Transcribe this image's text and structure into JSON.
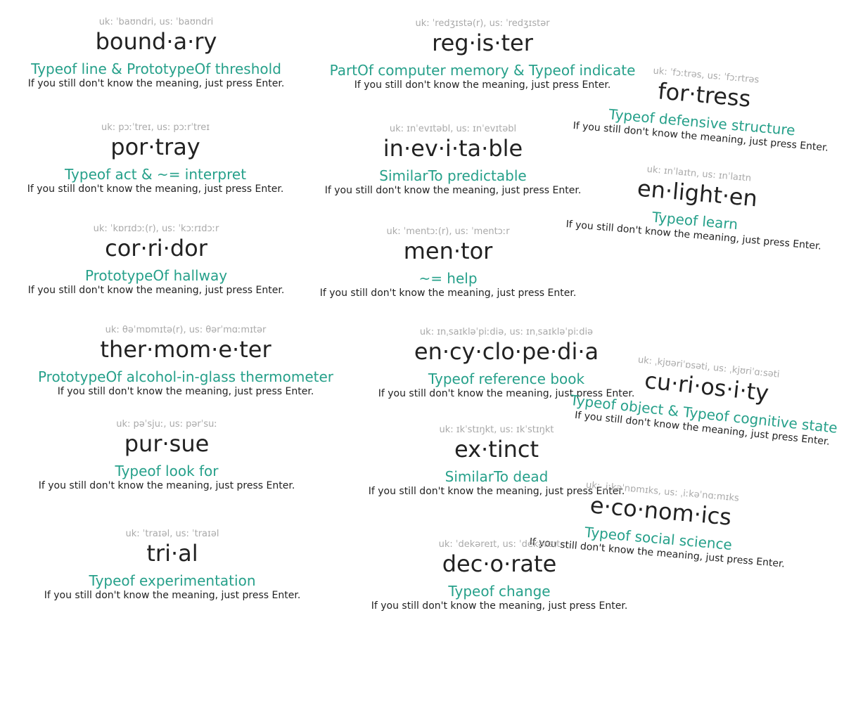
{
  "accent_color": "#26a08a",
  "cards": [
    {
      "pron": "uk: ˈbaʊndri, us: ˈbaʊndri",
      "word": "bound·a·ry",
      "relation": "Typeof line & PrototypeOf threshold",
      "hint": "If you still don't know the meaning, just press Enter."
    },
    {
      "pron": "uk: ˈredʒɪstə(r), us: ˈredʒɪstər",
      "word": "reg·is·ter",
      "relation": "PartOf computer memory & Typeof indicate",
      "hint": "If you still don't know the meaning, just press Enter."
    },
    {
      "pron": "uk: ˈfɔːtrəs, us: ˈfɔːrtrəs",
      "word": "for·tress",
      "relation": "Typeof defensive structure",
      "hint": "If you still don't know the meaning, just press Enter."
    },
    {
      "pron": "uk: pɔːˈtreɪ, us: pɔːrˈtreɪ",
      "word": "por·tray",
      "relation": "Typeof act & ~= interpret",
      "hint": "If you still don't know the meaning, just press Enter."
    },
    {
      "pron": "uk: ɪnˈevɪtəbl, us: ɪnˈevɪtəbl",
      "word": "in·ev·i·ta·ble",
      "relation": "SimilarTo predictable",
      "hint": "If you still don't know the meaning, just press Enter."
    },
    {
      "pron": "uk: ɪnˈlaɪtn, us: ɪnˈlaɪtn",
      "word": "en·light·en",
      "relation": "Typeof learn",
      "hint": "If you still don't know the meaning, just press Enter."
    },
    {
      "pron": "uk: ˈkɒrɪdɔː(r), us: ˈkɔːrɪdɔːr",
      "word": "cor·ri·dor",
      "relation": "PrototypeOf hallway",
      "hint": "If you still don't know the meaning, just press Enter."
    },
    {
      "pron": "uk: ˈmentɔː(r), us: ˈmentɔːr",
      "word": "men·tor",
      "relation": "~= help",
      "hint": "If you still don't know the meaning, just press Enter."
    },
    {
      "pron": "uk: θəˈmɒmɪtə(r), us: θərˈmɑːmɪtər",
      "word": "ther·mom·e·ter",
      "relation": "PrototypeOf alcohol-in-glass thermometer",
      "hint": "If you still don't know the meaning, just press Enter."
    },
    {
      "pron": "uk: ɪnˌsaɪkləˈpiːdiə, us: ɪnˌsaɪkləˈpiːdiə",
      "word": "en·cy·clo·pe·di·a",
      "relation": "Typeof reference book",
      "hint": "If you still don't know the meaning, just press Enter."
    },
    {
      "pron": "uk: ˌkjʊəriˈɒsəti, us: ˌkjʊriˈɑːsəti",
      "word": "cu·ri·os·i·ty",
      "relation": "Typeof object & Typeof cognitive state",
      "hint": "If you still don't know the meaning, just press Enter."
    },
    {
      "pron": "uk: pəˈsjuː, us: pərˈsuː",
      "word": "pur·sue",
      "relation": "Typeof look for",
      "hint": "If you still don't know the meaning, just press Enter."
    },
    {
      "pron": "uk: ɪkˈstɪŋkt, us: ɪkˈstɪŋkt",
      "word": "ex·tinct",
      "relation": "SimilarTo dead",
      "hint": "If you still don't know the meaning, just press Enter."
    },
    {
      "pron": "uk: ˌiːkəˈnɒmɪks, us: ˌiːkəˈnɑːmɪks",
      "word": "e·co·nom·ics",
      "relation": "Typeof social science",
      "hint": "If you still don't know the meaning, just press Enter."
    },
    {
      "pron": "uk: ˈtraɪəl, us: ˈtraɪəl",
      "word": "tri·al",
      "relation": "Typeof experimentation",
      "hint": "If you still don't know the meaning, just press Enter."
    },
    {
      "pron": "uk: ˈdekəreɪt, us: ˈdekəreɪt",
      "word": "dec·o·rate",
      "relation": "Typeof change",
      "hint": "If you still don't know the meaning, just press Enter."
    }
  ]
}
